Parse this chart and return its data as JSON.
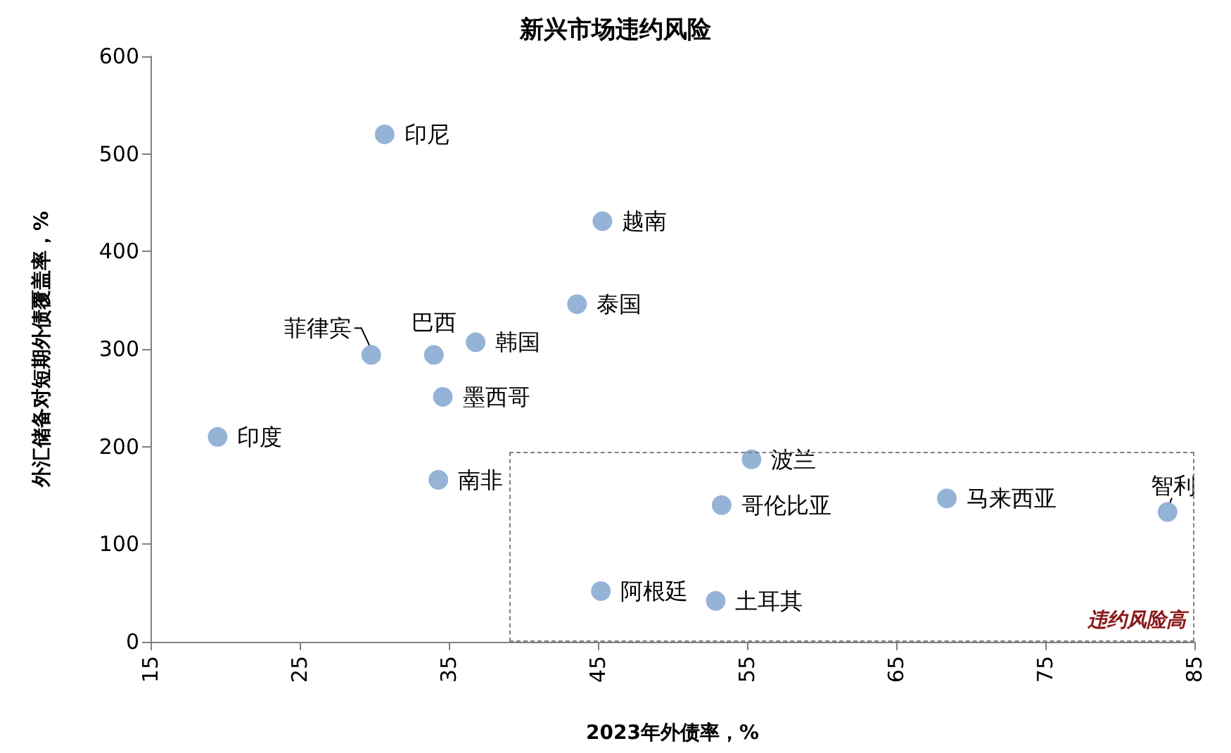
{
  "chart_data": {
    "type": "scatter",
    "title": "新兴市场违约风险",
    "xlabel": "2023年外债率，%",
    "ylabel": "外汇储备对短期外债覆盖率，%",
    "x": [
      30.7,
      45.3,
      43.6,
      29.8,
      34.0,
      36.8,
      34.6,
      19.5,
      34.3,
      55.3,
      53.3,
      68.4,
      83.2,
      45.2,
      52.9
    ],
    "series": [
      {
        "color": "#95b3d7",
        "values": [
          520,
          431,
          346,
          294,
          294,
          307,
          251,
          210,
          166,
          187,
          140,
          147,
          133,
          52,
          42
        ]
      }
    ],
    "xlim": [
      15,
      85
    ],
    "xticks": [
      15,
      25,
      35,
      45,
      55,
      65,
      75,
      85
    ],
    "ylim": [
      0,
      600
    ],
    "yticks": [
      0,
      100,
      200,
      300,
      400,
      500,
      600
    ],
    "grid": false,
    "marker": "circle",
    "annotations": [
      {
        "text": "印尼",
        "x": 30.7,
        "y": 520
      },
      {
        "text": "越南",
        "x": 45.3,
        "y": 431
      },
      {
        "text": "泰国",
        "x": 43.6,
        "y": 346
      },
      {
        "text": "菲律宾",
        "x": 29.8,
        "y": 294
      },
      {
        "text": "巴西",
        "x": 34.0,
        "y": 294
      },
      {
        "text": "韩国",
        "x": 36.8,
        "y": 307
      },
      {
        "text": "墨西哥",
        "x": 34.6,
        "y": 251
      },
      {
        "text": "印度",
        "x": 19.5,
        "y": 210
      },
      {
        "text": "南非",
        "x": 34.3,
        "y": 166
      },
      {
        "text": "波兰",
        "x": 55.3,
        "y": 187
      },
      {
        "text": "哥伦比亚",
        "x": 53.3,
        "y": 140
      },
      {
        "text": "马来西亚",
        "x": 68.4,
        "y": 147
      },
      {
        "text": "智利",
        "x": 83.2,
        "y": 133
      },
      {
        "text": "阿根廷",
        "x": 45.2,
        "y": 52
      },
      {
        "text": "土耳其",
        "x": 52.9,
        "y": 42
      },
      "违约风险高"
    ]
  }
}
